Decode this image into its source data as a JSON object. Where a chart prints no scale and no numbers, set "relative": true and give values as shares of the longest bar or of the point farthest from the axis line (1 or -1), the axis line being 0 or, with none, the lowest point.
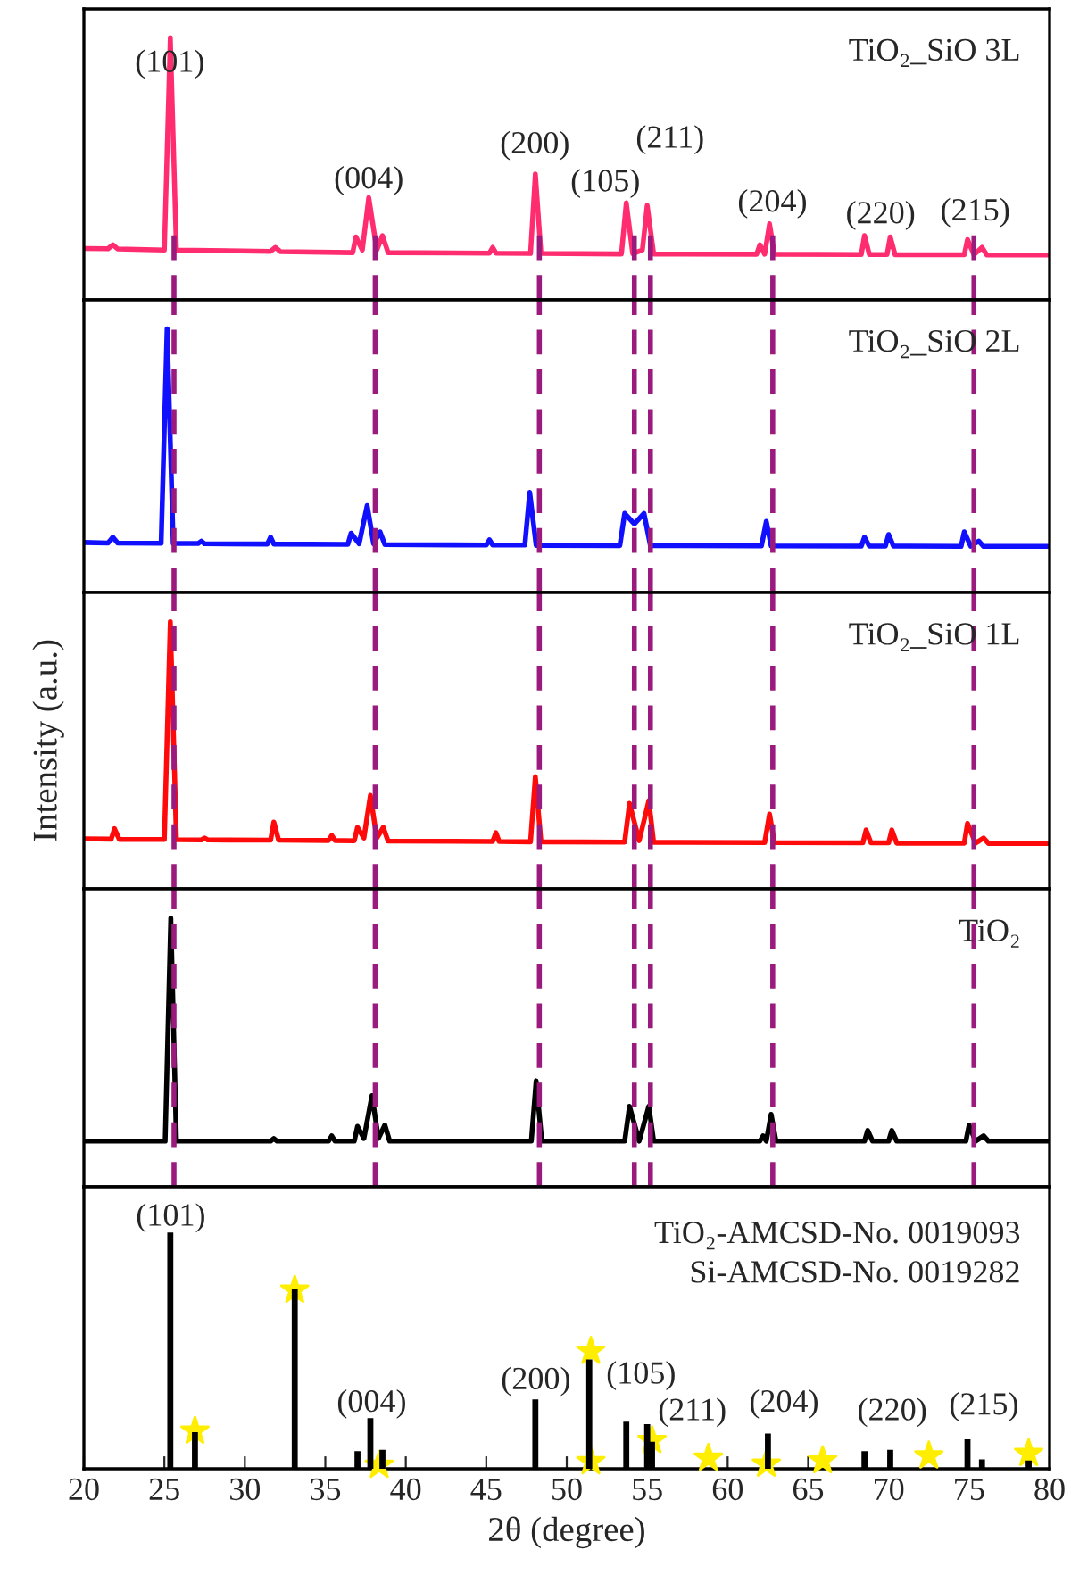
{
  "chart_data": [
    {
      "type": "line",
      "relative": true,
      "xlim": [
        20,
        80
      ],
      "tick_labels": false,
      "series": [
        {
          "name": "TiO₂_SiO 3L",
          "color": "#ff2d6f",
          "x": [
            20,
            21.5,
            21.8,
            22.1,
            25.0,
            25.37,
            25.75,
            31.6,
            31.9,
            32.2,
            36.7,
            36.9,
            37.3,
            37.7,
            38.2,
            38.55,
            38.9,
            45.2,
            45.4,
            45.6,
            47.75,
            48.05,
            48.4,
            53.4,
            53.7,
            54.1,
            54.7,
            55.0,
            55.4,
            61.8,
            62.0,
            62.3,
            62.6,
            62.9,
            68.3,
            68.5,
            68.8,
            69.9,
            70.1,
            70.4,
            74.7,
            74.9,
            75.3,
            75.8,
            76.1,
            80
          ],
          "values": [
            0.196,
            0.195,
            0.21,
            0.194,
            0.19,
            1,
            0.19,
            0.185,
            0.2,
            0.184,
            0.18,
            0.24,
            0.19,
            0.39,
            0.19,
            0.245,
            0.18,
            0.178,
            0.2,
            0.178,
            0.177,
            0.48,
            0.177,
            0.175,
            0.37,
            0.176,
            0.19,
            0.36,
            0.175,
            0.174,
            0.21,
            0.174,
            0.29,
            0.174,
            0.173,
            0.245,
            0.173,
            0.173,
            0.24,
            0.172,
            0.172,
            0.23,
            0.172,
            0.2,
            0.171,
            0.171
          ]
        }
      ],
      "ref_lines": [
        {
          "axis": "x",
          "value": 25.6,
          "color": "#9b1a7e",
          "line_style": "dashed"
        },
        {
          "axis": "x",
          "value": 38.1,
          "color": "#9b1a7e",
          "line_style": "dashed"
        },
        {
          "axis": "x",
          "value": 48.3,
          "color": "#9b1a7e",
          "line_style": "dashed"
        },
        {
          "axis": "x",
          "value": 54.2,
          "color": "#9b1a7e",
          "line_style": "dashed"
        },
        {
          "axis": "x",
          "value": 55.2,
          "color": "#9b1a7e",
          "line_style": "dashed"
        },
        {
          "axis": "x",
          "value": 62.8,
          "color": "#9b1a7e",
          "line_style": "dashed"
        },
        {
          "axis": "x",
          "value": 75.3,
          "color": "#9b1a7e",
          "line_style": "dashed"
        }
      ],
      "annotations": [
        "(101)",
        "(004)",
        "(200)",
        "(105)",
        "(211)",
        "(204)",
        "(220)",
        "(215)"
      ]
    },
    {
      "type": "line",
      "relative": true,
      "xlim": [
        20,
        80
      ],
      "tick_labels": false,
      "series": [
        {
          "name": "TiO₂_SiO 2L",
          "color": "#1010ff",
          "x": [
            20,
            21.5,
            21.8,
            22.1,
            24.8,
            25.17,
            25.55,
            27.1,
            27.3,
            27.5,
            31.4,
            31.6,
            31.8,
            36.4,
            36.6,
            37.1,
            37.6,
            38.0,
            38.4,
            38.7,
            45.0,
            45.2,
            45.4,
            47.4,
            47.7,
            48.1,
            53.3,
            53.6,
            54.2,
            54.8,
            55.2,
            62.1,
            62.4,
            62.7,
            68.3,
            68.5,
            68.8,
            69.8,
            70.0,
            70.3,
            74.5,
            74.7,
            75.1,
            75.6,
            75.9,
            80
          ],
          "values": [
            0.19,
            0.188,
            0.21,
            0.188,
            0.187,
            1,
            0.186,
            0.186,
            0.195,
            0.185,
            0.184,
            0.21,
            0.184,
            0.183,
            0.225,
            0.185,
            0.33,
            0.185,
            0.23,
            0.182,
            0.18,
            0.2,
            0.18,
            0.18,
            0.38,
            0.179,
            0.178,
            0.3,
            0.26,
            0.3,
            0.178,
            0.177,
            0.27,
            0.177,
            0.176,
            0.21,
            0.176,
            0.176,
            0.22,
            0.176,
            0.175,
            0.23,
            0.176,
            0.195,
            0.175,
            0.175
          ]
        }
      ],
      "ref_lines": [
        {
          "axis": "x",
          "value": 25.6,
          "color": "#9b1a7e",
          "line_style": "dashed"
        },
        {
          "axis": "x",
          "value": 38.1,
          "color": "#9b1a7e",
          "line_style": "dashed"
        },
        {
          "axis": "x",
          "value": 48.3,
          "color": "#9b1a7e",
          "line_style": "dashed"
        },
        {
          "axis": "x",
          "value": 54.2,
          "color": "#9b1a7e",
          "line_style": "dashed"
        },
        {
          "axis": "x",
          "value": 55.2,
          "color": "#9b1a7e",
          "line_style": "dashed"
        },
        {
          "axis": "x",
          "value": 62.8,
          "color": "#9b1a7e",
          "line_style": "dashed"
        },
        {
          "axis": "x",
          "value": 75.3,
          "color": "#9b1a7e",
          "line_style": "dashed"
        }
      ]
    },
    {
      "type": "line",
      "relative": true,
      "xlim": [
        20,
        80
      ],
      "tick_labels": false,
      "ylabel": "Intensity (a.u.)",
      "series": [
        {
          "name": "TiO₂_SiO 1L",
          "color": "#ff0a0a",
          "x": [
            20,
            21.7,
            21.9,
            22.2,
            25.0,
            25.37,
            25.75,
            27.3,
            27.5,
            27.7,
            31.6,
            31.8,
            32.1,
            35.2,
            35.4,
            35.6,
            36.8,
            37.0,
            37.4,
            37.8,
            38.2,
            38.6,
            38.9,
            45.4,
            45.6,
            45.8,
            47.75,
            48.05,
            48.4,
            53.6,
            53.9,
            54.5,
            55.1,
            55.4,
            62.3,
            62.6,
            62.9,
            68.4,
            68.6,
            68.9,
            70.0,
            70.2,
            70.5,
            74.7,
            74.9,
            75.4,
            75.9,
            76.2,
            80
          ],
          "values": [
            0.187,
            0.186,
            0.225,
            0.185,
            0.185,
            1,
            0.184,
            0.183,
            0.19,
            0.183,
            0.182,
            0.25,
            0.182,
            0.181,
            0.2,
            0.181,
            0.18,
            0.23,
            0.19,
            0.35,
            0.19,
            0.23,
            0.179,
            0.177,
            0.21,
            0.177,
            0.176,
            0.42,
            0.176,
            0.175,
            0.32,
            0.18,
            0.33,
            0.174,
            0.173,
            0.28,
            0.173,
            0.172,
            0.22,
            0.172,
            0.172,
            0.22,
            0.171,
            0.171,
            0.245,
            0.171,
            0.19,
            0.17,
            0.17
          ]
        }
      ],
      "ref_lines": [
        {
          "axis": "x",
          "value": 25.6,
          "color": "#9b1a7e",
          "line_style": "dashed"
        },
        {
          "axis": "x",
          "value": 38.1,
          "color": "#9b1a7e",
          "line_style": "dashed"
        },
        {
          "axis": "x",
          "value": 48.3,
          "color": "#9b1a7e",
          "line_style": "dashed"
        },
        {
          "axis": "x",
          "value": 54.2,
          "color": "#9b1a7e",
          "line_style": "dashed"
        },
        {
          "axis": "x",
          "value": 55.2,
          "color": "#9b1a7e",
          "line_style": "dashed"
        },
        {
          "axis": "x",
          "value": 62.8,
          "color": "#9b1a7e",
          "line_style": "dashed"
        },
        {
          "axis": "x",
          "value": 75.3,
          "color": "#9b1a7e",
          "line_style": "dashed"
        }
      ]
    },
    {
      "type": "line",
      "relative": true,
      "xlim": [
        20,
        80
      ],
      "tick_labels": false,
      "series": [
        {
          "name": "TiO₂",
          "color": "#000000",
          "x": [
            20,
            25.05,
            25.4,
            25.75,
            31.6,
            31.8,
            32.0,
            35.2,
            35.4,
            35.6,
            36.8,
            37.0,
            37.4,
            37.9,
            38.3,
            38.7,
            39.0,
            47.8,
            48.1,
            48.45,
            53.6,
            53.9,
            54.5,
            55.1,
            55.4,
            62.0,
            62.2,
            62.4,
            62.7,
            63.0,
            68.5,
            68.7,
            69.0,
            70.0,
            70.2,
            70.5,
            74.8,
            75.0,
            75.4,
            75.9,
            76.2,
            80
          ],
          "values": [
            0.17,
            0.17,
            1,
            0.17,
            0.17,
            0.18,
            0.17,
            0.17,
            0.19,
            0.17,
            0.17,
            0.225,
            0.18,
            0.34,
            0.18,
            0.23,
            0.17,
            0.17,
            0.395,
            0.17,
            0.17,
            0.3,
            0.17,
            0.3,
            0.17,
            0.17,
            0.19,
            0.17,
            0.27,
            0.17,
            0.17,
            0.21,
            0.17,
            0.17,
            0.21,
            0.17,
            0.17,
            0.23,
            0.17,
            0.19,
            0.17,
            0.17
          ]
        }
      ],
      "ref_lines": [
        {
          "axis": "x",
          "value": 25.6,
          "color": "#9b1a7e",
          "line_style": "dashed"
        },
        {
          "axis": "x",
          "value": 38.1,
          "color": "#9b1a7e",
          "line_style": "dashed"
        },
        {
          "axis": "x",
          "value": 48.3,
          "color": "#9b1a7e",
          "line_style": "dashed"
        },
        {
          "axis": "x",
          "value": 54.2,
          "color": "#9b1a7e",
          "line_style": "dashed"
        },
        {
          "axis": "x",
          "value": 55.2,
          "color": "#9b1a7e",
          "line_style": "dashed"
        },
        {
          "axis": "x",
          "value": 62.8,
          "color": "#9b1a7e",
          "line_style": "dashed"
        },
        {
          "axis": "x",
          "value": 75.3,
          "color": "#9b1a7e",
          "line_style": "dashed"
        }
      ]
    },
    {
      "type": "bar",
      "relative": true,
      "xlim": [
        20,
        80
      ],
      "xticks": [
        20,
        25,
        30,
        35,
        40,
        45,
        50,
        55,
        60,
        65,
        70,
        75,
        80
      ],
      "tick_labels": "x",
      "xlabel": "2θ (degree)",
      "series": [
        {
          "type": "bar",
          "color": "#000000",
          "x": [
            25.37,
            26.9,
            33.1,
            37.0,
            37.8,
            38.55,
            48.05,
            51.4,
            53.7,
            55.0,
            55.3,
            62.5,
            68.5,
            70.1,
            74.9,
            75.8,
            78.7
          ],
          "values": [
            1,
            0.15,
            0.76,
            0.07,
            0.21,
            0.075,
            0.29,
            0.46,
            0.195,
            0.185,
            0.11,
            0.145,
            0.07,
            0.075,
            0.12,
            0.035,
            0.03
          ]
        },
        {
          "type": "scatter",
          "marker": "star",
          "color": "#ffee00",
          "x": [
            26.9,
            33.1,
            38.35,
            51.5,
            51.5,
            55.3,
            58.8,
            62.4,
            65.9,
            72.5,
            78.7
          ],
          "values": [
            0.16,
            0.76,
            0.015,
            0.5,
            0.03,
            0.12,
            0.045,
            0.02,
            0.035,
            0.055,
            0.065
          ]
        }
      ],
      "annotations": [
        "TiO₂-AMCSD-No. 0019093",
        "Si-AMCSD-No. 0019282",
        "(101)",
        "(004)",
        "(200)",
        "(105)",
        "(211)",
        "(204)",
        "(220)",
        "(215)"
      ]
    }
  ]
}
